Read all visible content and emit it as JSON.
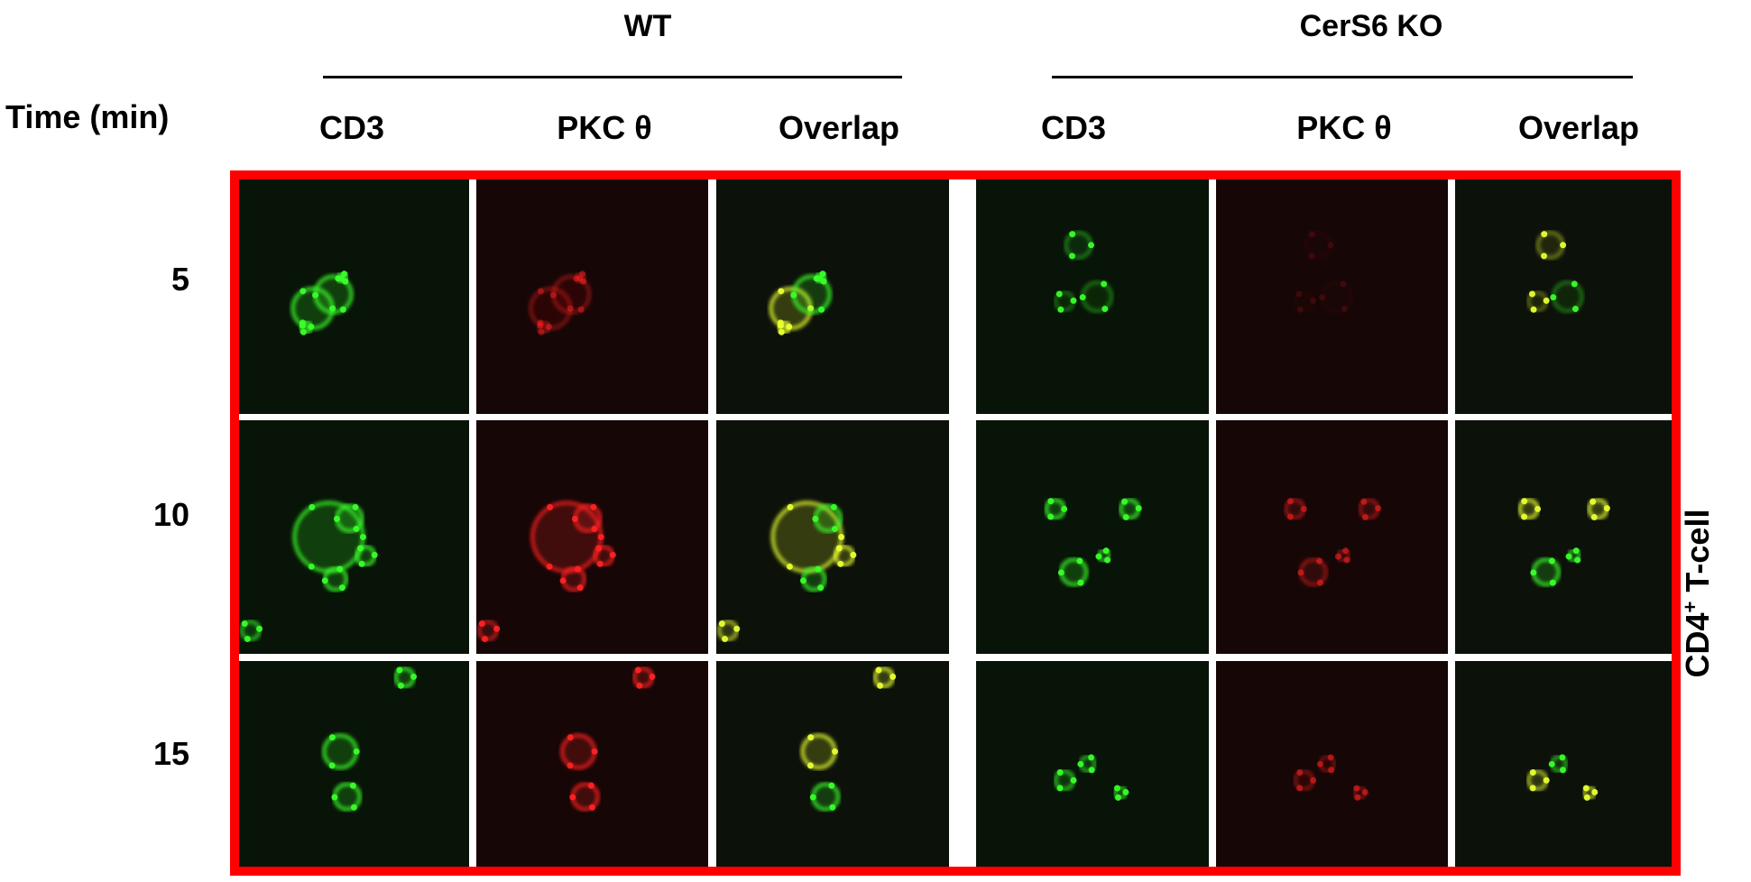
{
  "header": {
    "groups": [
      {
        "title": "WT",
        "columns": [
          "CD3",
          "PKC θ",
          "Overlap"
        ]
      },
      {
        "title": "CerS6 KO",
        "columns": [
          "CD3",
          "PKC θ",
          "Overlap"
        ]
      }
    ],
    "row_axis_title": "Time (min)"
  },
  "rows": [
    {
      "label": "5"
    },
    {
      "label": "10"
    },
    {
      "label": "15"
    }
  ],
  "side_label": {
    "text": "CD4",
    "superscript": "+",
    "suffix": " T-cell"
  },
  "colors": {
    "frame": "#ff0000",
    "divider": "#ffffff",
    "cd3_green": "#39ff2a",
    "pkc_red": "#ff2222",
    "overlap_yellow": "#e8ff30"
  },
  "panel_channels": [
    "cd3",
    "pkc",
    "overlap",
    "cd3",
    "pkc",
    "overlap"
  ]
}
